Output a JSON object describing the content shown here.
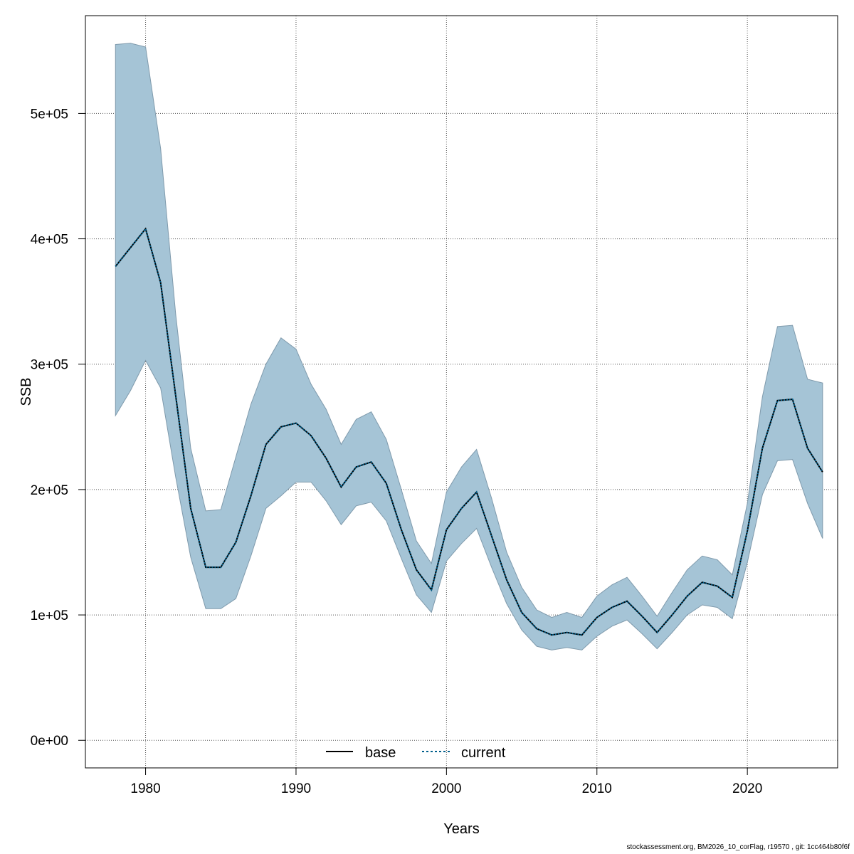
{
  "chart_data": {
    "type": "line",
    "title": "",
    "xlabel": "Years",
    "ylabel": "SSB",
    "xlim": [
      1976,
      2026
    ],
    "ylim": [
      -22000,
      578000
    ],
    "grid": true,
    "x_ticks": [
      1980,
      1990,
      2000,
      2010,
      2020
    ],
    "y_ticks": [
      0,
      100000,
      200000,
      300000,
      400000,
      500000
    ],
    "y_tick_labels": [
      "0e+00",
      "1e+05",
      "2e+05",
      "3e+05",
      "4e+05",
      "5e+05"
    ],
    "x": [
      1978,
      1979,
      1980,
      1981,
      1982,
      1983,
      1984,
      1985,
      1986,
      1987,
      1988,
      1989,
      1990,
      1991,
      1992,
      1993,
      1994,
      1995,
      1996,
      1997,
      1998,
      1999,
      2000,
      2001,
      2002,
      2003,
      2004,
      2005,
      2006,
      2007,
      2008,
      2009,
      2010,
      2011,
      2012,
      2013,
      2014,
      2015,
      2016,
      2017,
      2018,
      2019,
      2020,
      2021,
      2022,
      2023,
      2024,
      2025
    ],
    "series": [
      {
        "name": "base",
        "line_style": "solid",
        "color": "#000000",
        "values": [
          378000,
          393000,
          408000,
          365000,
          275000,
          185000,
          138000,
          138000,
          158000,
          195000,
          236000,
          250000,
          253000,
          243000,
          225000,
          202000,
          218000,
          222000,
          205000,
          168000,
          136000,
          120000,
          168000,
          185000,
          198000,
          163000,
          128000,
          102000,
          89000,
          84000,
          86000,
          84000,
          98000,
          106000,
          111000,
          99000,
          86000,
          100000,
          115000,
          126000,
          123000,
          114000,
          167000,
          233000,
          271000,
          272000,
          233000,
          214000
        ]
      },
      {
        "name": "current",
        "line_style": "dotted",
        "color": "#005F8C",
        "values": [
          378000,
          393000,
          408000,
          365000,
          275000,
          185000,
          138000,
          138000,
          158000,
          195000,
          236000,
          250000,
          253000,
          243000,
          225000,
          202000,
          218000,
          222000,
          205000,
          168000,
          136000,
          120000,
          168000,
          185000,
          198000,
          163000,
          128000,
          102000,
          89000,
          84000,
          86000,
          84000,
          98000,
          106000,
          111000,
          99000,
          86000,
          100000,
          115000,
          126000,
          123000,
          114000,
          167000,
          233000,
          271000,
          272000,
          233000,
          214000
        ]
      }
    ],
    "confidence_band": {
      "fill_color": "#A5C4D6",
      "edge_color": "#7F9AAC",
      "upper": [
        555000,
        556000,
        553000,
        472000,
        340000,
        233000,
        183000,
        184000,
        226000,
        268000,
        300000,
        321000,
        312000,
        284000,
        264000,
        236000,
        256000,
        262000,
        240000,
        200000,
        159000,
        141000,
        198000,
        218000,
        232000,
        193000,
        150000,
        122000,
        104000,
        98000,
        102000,
        98000,
        115000,
        124000,
        130000,
        115000,
        99000,
        118000,
        136000,
        147000,
        144000,
        132000,
        189000,
        274000,
        330000,
        331000,
        288000,
        285000
      ],
      "lower": [
        259000,
        279000,
        303000,
        281000,
        210000,
        146000,
        105000,
        105000,
        113000,
        147000,
        185000,
        195000,
        206000,
        206000,
        191000,
        172000,
        187000,
        190000,
        175000,
        145000,
        116000,
        102000,
        143000,
        157000,
        169000,
        138000,
        109000,
        88000,
        75000,
        72000,
        74000,
        72000,
        83000,
        91000,
        96000,
        85000,
        73000,
        86000,
        100000,
        108000,
        106000,
        97000,
        142000,
        196000,
        223000,
        224000,
        189000,
        161000
      ]
    },
    "legend": {
      "placement": "bottom-center",
      "entries": [
        "base",
        "current"
      ]
    }
  },
  "footnote": "stockassessment.org, BM2026_10_corFlag, r19570 , git: 1cc464b80f6f"
}
